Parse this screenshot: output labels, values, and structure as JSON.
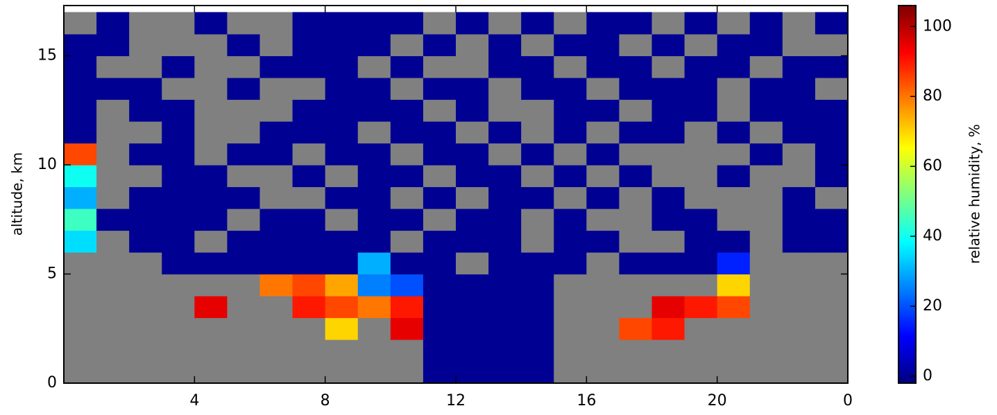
{
  "chart_data": {
    "type": "heatmap",
    "ylabel": "altitude, km",
    "colorbar_label": "relative humidity, %",
    "colorscale": "jet",
    "null_color": "#808080",
    "x": [
      0.5,
      1.5,
      2.5,
      3.5,
      4.5,
      5.5,
      6.5,
      7.5,
      8.5,
      9.5,
      10.5,
      11.5,
      12.5,
      13.5,
      14.5,
      15.5,
      16.5,
      17.5,
      18.5,
      19.5,
      20.5,
      21.5,
      22.5,
      23.5
    ],
    "y": [
      0.5,
      1.5,
      2.5,
      3.5,
      4.5,
      5.5,
      6.5,
      7.5,
      8.5,
      9.5,
      10.5,
      11.5,
      12.5,
      13.5,
      14.5,
      15.5,
      16.5
    ],
    "z": [
      [
        null,
        null,
        null,
        null,
        null,
        null,
        null,
        null,
        null,
        null,
        null,
        0,
        0,
        0,
        0,
        null,
        null,
        null,
        null,
        null,
        null,
        null,
        null,
        null
      ],
      [
        null,
        null,
        null,
        null,
        null,
        null,
        null,
        null,
        null,
        null,
        null,
        0,
        0,
        0,
        0,
        null,
        null,
        null,
        null,
        null,
        null,
        null,
        null,
        null
      ],
      [
        null,
        null,
        null,
        null,
        null,
        null,
        null,
        null,
        70,
        null,
        95,
        0,
        0,
        0,
        0,
        null,
        null,
        85,
        90,
        null,
        null,
        null,
        null,
        null
      ],
      [
        null,
        null,
        null,
        null,
        95,
        null,
        null,
        90,
        85,
        80,
        90,
        0,
        0,
        0,
        0,
        null,
        null,
        null,
        95,
        90,
        85,
        null,
        null,
        null
      ],
      [
        null,
        null,
        null,
        null,
        null,
        null,
        80,
        85,
        75,
        25,
        20,
        0,
        0,
        0,
        0,
        null,
        null,
        null,
        null,
        null,
        70,
        null,
        null,
        null
      ],
      [
        null,
        null,
        null,
        0,
        0,
        0,
        0,
        0,
        0,
        30,
        0,
        0,
        null,
        0,
        0,
        0,
        null,
        0,
        0,
        0,
        15,
        null,
        null,
        null
      ],
      [
        35,
        null,
        0,
        0,
        null,
        0,
        0,
        0,
        0,
        0,
        null,
        0,
        0,
        0,
        null,
        0,
        0,
        null,
        null,
        0,
        0,
        null,
        0,
        0
      ],
      [
        45,
        0,
        0,
        0,
        0,
        null,
        0,
        0,
        null,
        0,
        0,
        null,
        0,
        0,
        null,
        0,
        null,
        null,
        0,
        0,
        null,
        null,
        0,
        0
      ],
      [
        30,
        null,
        0,
        0,
        0,
        0,
        null,
        null,
        0,
        0,
        null,
        0,
        null,
        0,
        0,
        null,
        0,
        null,
        0,
        null,
        null,
        null,
        0,
        null
      ],
      [
        40,
        null,
        null,
        0,
        0,
        null,
        null,
        0,
        null,
        0,
        0,
        null,
        0,
        0,
        null,
        0,
        null,
        0,
        null,
        null,
        0,
        null,
        null,
        0
      ],
      [
        85,
        null,
        0,
        0,
        null,
        0,
        0,
        null,
        0,
        0,
        null,
        0,
        0,
        null,
        0,
        null,
        0,
        null,
        null,
        null,
        null,
        0,
        null,
        0
      ],
      [
        0,
        null,
        null,
        0,
        null,
        null,
        0,
        0,
        0,
        null,
        0,
        0,
        null,
        0,
        null,
        0,
        null,
        0,
        0,
        null,
        0,
        null,
        0,
        0
      ],
      [
        0,
        null,
        0,
        0,
        null,
        null,
        null,
        0,
        0,
        0,
        0,
        null,
        0,
        null,
        null,
        0,
        0,
        null,
        0,
        0,
        null,
        0,
        0,
        0
      ],
      [
        0,
        0,
        0,
        null,
        null,
        0,
        null,
        null,
        0,
        0,
        null,
        0,
        0,
        null,
        0,
        0,
        null,
        0,
        0,
        0,
        null,
        0,
        0,
        null
      ],
      [
        0,
        null,
        null,
        0,
        null,
        null,
        0,
        0,
        0,
        null,
        0,
        null,
        null,
        0,
        0,
        null,
        0,
        0,
        null,
        0,
        0,
        null,
        0,
        0
      ],
      [
        0,
        0,
        null,
        null,
        null,
        0,
        null,
        0,
        0,
        0,
        null,
        0,
        null,
        0,
        null,
        0,
        0,
        null,
        0,
        null,
        0,
        0,
        null,
        null
      ],
      [
        null,
        0,
        null,
        null,
        0,
        null,
        null,
        0,
        0,
        0,
        0,
        null,
        0,
        null,
        0,
        null,
        0,
        0,
        null,
        0,
        null,
        0,
        null,
        0
      ]
    ],
    "xlim": [
      0,
      24
    ],
    "ylim": [
      0,
      17.3
    ],
    "xticks": [
      4,
      8,
      12,
      16,
      20,
      {
        "value": 24,
        "label": "0"
      }
    ],
    "yticks": [
      0,
      5,
      10,
      15
    ],
    "clim": [
      -2,
      106
    ],
    "cticks": [
      0,
      20,
      40,
      60,
      80,
      100
    ]
  }
}
